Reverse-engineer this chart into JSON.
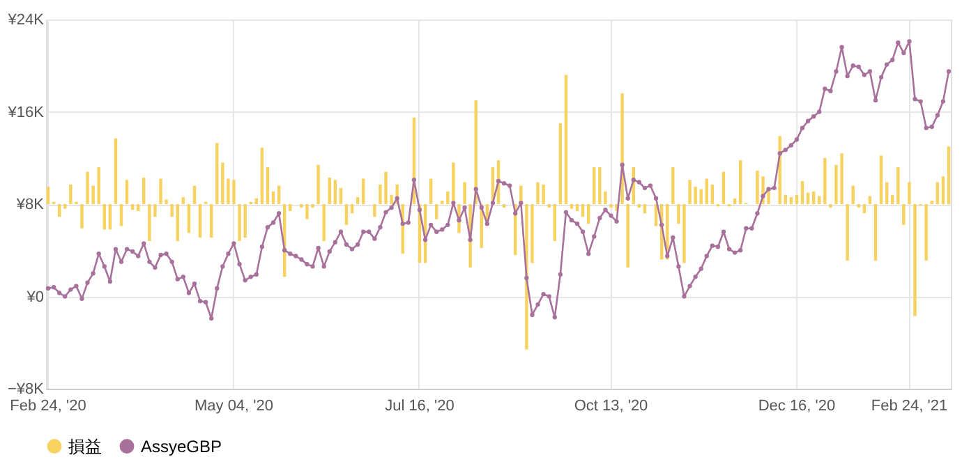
{
  "chart_data": {
    "type": "bar",
    "categories": [
      "Feb 24, '20",
      null,
      null,
      null,
      null,
      null,
      null,
      null,
      null,
      null,
      null,
      null,
      null,
      null,
      null,
      null,
      null,
      null,
      null,
      null,
      null,
      null,
      null,
      null,
      null,
      null,
      null,
      null,
      null,
      null,
      null,
      null,
      null,
      "May 04, '20",
      null,
      null,
      null,
      null,
      null,
      null,
      null,
      null,
      null,
      null,
      null,
      null,
      null,
      null,
      null,
      null,
      null,
      null,
      null,
      null,
      null,
      null,
      null,
      null,
      null,
      null,
      null,
      null,
      null,
      null,
      null,
      null,
      "Jul 16, '20",
      null,
      null,
      null,
      null,
      null,
      null,
      null,
      null,
      null,
      null,
      null,
      null,
      null,
      null,
      null,
      null,
      null,
      null,
      null,
      null,
      null,
      null,
      null,
      null,
      null,
      null,
      null,
      null,
      null,
      null,
      null,
      null,
      null,
      "Oct 13, '20",
      null,
      null,
      null,
      null,
      null,
      null,
      null,
      null,
      null,
      null,
      null,
      null,
      null,
      null,
      null,
      null,
      null,
      null,
      null,
      null,
      null,
      null,
      null,
      null,
      null,
      null,
      null,
      null,
      null,
      null,
      null,
      null,
      "Dec 16, '20",
      null,
      null,
      null,
      null,
      null,
      null,
      null,
      null,
      null,
      null,
      null,
      null,
      null,
      null,
      null,
      null,
      null,
      null,
      null,
      "Feb 24, '21",
      null,
      null,
      null,
      null,
      null,
      null,
      null
    ],
    "series": [
      {
        "name": "損益",
        "color": "#f7d260",
        "values": [
          1.5,
          0.2,
          -1.1,
          -0.4,
          1.7,
          0.2,
          -2.1,
          2.8,
          1.6,
          3.2,
          -2.2,
          -2.2,
          5.7,
          -1.9,
          2.1,
          -0.5,
          -0.6,
          2.3,
          -3.2,
          -1.1,
          2.2,
          0.4,
          -1.1,
          -3.2,
          0.6,
          -2.5,
          1.6,
          -2.9,
          0.2,
          -2.9,
          5.3,
          3.6,
          2.2,
          2.1,
          -3.2,
          -2.9,
          0.2,
          0.5,
          4.9,
          3.2,
          1.1,
          1.6,
          -6.3,
          -0.6,
          null,
          -0.3,
          -1.3,
          -0.3,
          3.4,
          -3.2,
          2.3,
          2.1,
          1.4,
          -1.8,
          -0.8,
          0.6,
          2.2,
          null,
          -1.1,
          1.7,
          2.8,
          0.8,
          1.7,
          -4.3,
          null,
          7.5,
          -5.1,
          -5.1,
          2.2,
          -1.3,
          0.3,
          1.1,
          3.6,
          -2.5,
          1.9,
          -5.5,
          9.0,
          -3.8,
          -1.5,
          3.2,
          3.8,
          -0.3,
          null,
          -4.4,
          1.6,
          -12.6,
          -5.1,
          1.9,
          1.7,
          -0.3,
          -3.2,
          7.0,
          11.2,
          -0.4,
          -0.6,
          -1.1,
          -1.7,
          3.2,
          3.2,
          1.1,
          -0.3,
          -0.6,
          9.6,
          -5.5,
          3.2,
          -0.3,
          -0.8,
          null,
          -1.9,
          -4.8,
          -4.8,
          3.2,
          -1.7,
          -5.1,
          2.1,
          1.5,
          1.3,
          2.2,
          1.7,
          -0.2,
          2.8,
          -0.2,
          0.5,
          3.8,
          0.1,
          null,
          2.9,
          2.4,
          1.1,
          null,
          5.9,
          0.8,
          0.6,
          0.8,
          2.0,
          1.0,
          1.1,
          0.7,
          4.0,
          -0.3,
          3.4,
          4.4,
          -4.9,
          1.6,
          -0.3,
          -0.8,
          0.7,
          -4.9,
          4.2,
          1.9,
          0.8,
          3.2,
          -1.8,
          1.9,
          -9.7,
          -0.1,
          -4.9,
          0.3,
          1.9,
          2.4,
          5.0
        ],
        "base": [
          8,
          8,
          8,
          8,
          8,
          8,
          8,
          8,
          8,
          8,
          8,
          8,
          8,
          8,
          8,
          8,
          8,
          8,
          8,
          8,
          8,
          8,
          8,
          8,
          8,
          8,
          8,
          8,
          8,
          8,
          8,
          8,
          8,
          8,
          8,
          8,
          8,
          8,
          8,
          8,
          8,
          8,
          8,
          8,
          null,
          8,
          8,
          8,
          8,
          8,
          8,
          8,
          8,
          8,
          8,
          8,
          8,
          null,
          8,
          8,
          8,
          8,
          8,
          8,
          null,
          8,
          8,
          8,
          8,
          8,
          8,
          8,
          8,
          8,
          8,
          8,
          8,
          8,
          8,
          8,
          8,
          8,
          null,
          8,
          8,
          8,
          8,
          8,
          8,
          8,
          8,
          8,
          8,
          8,
          8,
          8,
          8,
          8,
          8,
          8,
          8,
          8,
          8,
          8,
          8,
          8,
          8,
          null,
          8,
          8,
          8,
          8,
          8,
          8,
          8,
          8,
          8,
          8,
          8,
          8,
          8,
          8,
          8,
          8,
          8,
          null,
          8,
          8,
          8,
          null,
          8,
          8,
          8,
          8,
          8,
          8,
          8,
          8,
          8,
          8,
          8,
          8,
          8,
          8,
          8,
          8,
          8,
          8,
          8,
          8,
          8,
          8,
          8,
          8,
          8,
          8,
          8,
          8,
          8,
          8,
          8
        ]
      },
      {
        "name": "AssyeGBP",
        "type": "line",
        "color": "#a8719c",
        "marker": "circle",
        "line_style": "solid",
        "values": [
          0.7,
          0.8,
          0.3,
          0,
          0.6,
          0.9,
          -0.2,
          1.2,
          2.0,
          3.7,
          2.6,
          1.3,
          4.1,
          3.0,
          4.1,
          3.9,
          3.5,
          4.6,
          3.0,
          2.5,
          3.6,
          3.7,
          3.0,
          1.5,
          1.7,
          0.3,
          1.1,
          -0.4,
          -0.5,
          -1.9,
          0.7,
          2.6,
          3.7,
          4.6,
          2.8,
          1.4,
          1.7,
          1.9,
          4.3,
          6.0,
          6.4,
          7.2,
          4.0,
          3.7,
          3.5,
          3.2,
          2.8,
          2.6,
          4.2,
          2.6,
          3.9,
          4.7,
          5.6,
          4.5,
          4.1,
          4.5,
          5.6,
          5.6,
          5.0,
          6.0,
          7.3,
          7.7,
          8.5,
          6.3,
          6.4,
          10.1,
          7.5,
          4.9,
          6.2,
          5.6,
          5.8,
          6.2,
          8.1,
          6.6,
          7.7,
          4.9,
          9.3,
          7.7,
          6.3,
          8.1,
          10.0,
          9.8,
          9.6,
          7.2,
          8.1,
          1.6,
          -1.6,
          -0.7,
          0.2,
          0,
          -1.8,
          1.9,
          7.3,
          6.6,
          6.3,
          5.6,
          3.7,
          5.2,
          6.8,
          7.5,
          7.0,
          6.5,
          11.4,
          8.5,
          10.1,
          9.9,
          9.4,
          9.6,
          8.5,
          6.2,
          3.5,
          5.1,
          2.6,
          0,
          0.9,
          1.7,
          2.4,
          3.5,
          4.4,
          4.3,
          5.6,
          4.1,
          3.8,
          4.0,
          5.9,
          5.9,
          7.2,
          8.7,
          9.3,
          9.4,
          12.4,
          12.7,
          13.1,
          13.6,
          14.6,
          15.2,
          15.6,
          16.0,
          18.0,
          17.8,
          19.5,
          21.6,
          19.1,
          20.0,
          19.9,
          19.2,
          19.5,
          17.0,
          19.0,
          20.1,
          20.5,
          22.0,
          21.1,
          22.1,
          17.1,
          16.9,
          14.6,
          14.7,
          15.7,
          16.9,
          19.5
        ]
      }
    ],
    "ylim": [
      -8,
      24
    ],
    "yticks": [
      {
        "value": -8,
        "label": "−¥8K"
      },
      {
        "value": 0,
        "label": "¥0"
      },
      {
        "value": 8,
        "label": "¥8K"
      },
      {
        "value": 16,
        "label": "¥16K"
      },
      {
        "value": 24,
        "label": "¥24K"
      }
    ],
    "grid": true,
    "legend": "bottom"
  }
}
